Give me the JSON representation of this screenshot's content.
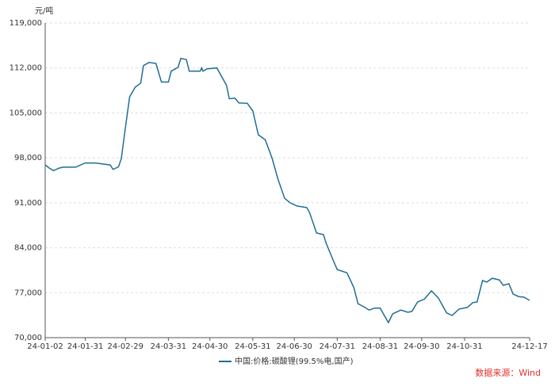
{
  "chart_data": {
    "type": "line",
    "y_unit": "元/吨",
    "source": "数据来源：Wind",
    "x": [
      "24-01-02",
      "24-01-05",
      "24-01-08",
      "24-01-12",
      "24-01-15",
      "24-01-24",
      "24-01-31",
      "24-02-07",
      "24-02-18",
      "24-02-20",
      "24-02-24",
      "24-02-26",
      "24-02-29",
      "24-03-03",
      "24-03-07",
      "24-03-11",
      "24-03-13",
      "24-03-17",
      "24-03-22",
      "24-03-26",
      "24-03-31",
      "24-04-02",
      "24-04-07",
      "24-04-09",
      "24-04-13",
      "24-04-15",
      "24-04-23",
      "24-04-24",
      "24-04-25",
      "24-04-28",
      "24-05-05",
      "24-05-12",
      "24-05-14",
      "24-05-18",
      "24-05-21",
      "24-05-27",
      "24-05-31",
      "24-06-04",
      "24-06-09",
      "24-06-14",
      "24-06-18",
      "24-06-23",
      "24-06-27",
      "24-07-02",
      "24-07-09",
      "24-07-11",
      "24-07-16",
      "24-07-21",
      "24-07-23",
      "24-07-28",
      "24-07-31",
      "24-08-07",
      "24-08-12",
      "24-08-15",
      "24-08-20",
      "24-08-23",
      "24-08-27",
      "24-08-31",
      "24-09-03",
      "24-09-06",
      "24-09-09",
      "24-09-15",
      "24-09-20",
      "24-09-23",
      "24-09-27",
      "24-10-02",
      "24-10-07",
      "24-10-12",
      "24-10-18",
      "24-10-22",
      "24-10-27",
      "24-11-02",
      "24-11-06",
      "24-11-09",
      "24-11-13",
      "24-11-16",
      "24-11-20",
      "24-11-25",
      "24-11-28",
      "24-12-02",
      "24-12-05",
      "24-12-09",
      "24-12-13",
      "24-12-17"
    ],
    "series": [
      {
        "name": "中国:价格:碳酸锂(99.5%电,国产)",
        "color": "#1f6e94",
        "values": [
          96900,
          96400,
          96000,
          96400,
          96550,
          96550,
          97200,
          97200,
          96900,
          96200,
          96600,
          97900,
          102800,
          107500,
          109000,
          109650,
          112350,
          112850,
          112700,
          109800,
          109800,
          111500,
          112100,
          113500,
          113300,
          111500,
          111500,
          112000,
          111500,
          111850,
          112000,
          109300,
          107200,
          107300,
          106550,
          106500,
          105300,
          101600,
          100800,
          97900,
          94800,
          91700,
          91000,
          90500,
          90250,
          89500,
          86300,
          86050,
          84700,
          82100,
          80600,
          80100,
          77800,
          75300,
          74700,
          74300,
          74600,
          74600,
          73450,
          72350,
          73700,
          74300,
          73950,
          74100,
          75550,
          76000,
          77300,
          76200,
          73850,
          73450,
          74450,
          74700,
          75450,
          75550,
          78900,
          78650,
          79250,
          79000,
          78150,
          78400,
          76800,
          76400,
          76300,
          75800
        ]
      }
    ],
    "xlim": [
      "24-01-02",
      "24-12-17"
    ],
    "xticks": [
      "24-01-02",
      "24-01-31",
      "24-02-29",
      "24-03-31",
      "24-04-30",
      "24-05-31",
      "24-06-30",
      "24-07-31",
      "24-08-31",
      "24-09-30",
      "24-10-31",
      "24-12-17"
    ],
    "ylim": [
      70000,
      119000
    ],
    "yticks": [
      {
        "value": 70000,
        "label": "70,000"
      },
      {
        "value": 77000,
        "label": "77,000"
      },
      {
        "value": 84000,
        "label": "84,000"
      },
      {
        "value": 91000,
        "label": "91,000"
      },
      {
        "value": 98000,
        "label": "98,000"
      },
      {
        "value": 105000,
        "label": "105,000"
      },
      {
        "value": 112000,
        "label": "112,000"
      },
      {
        "value": 119000,
        "label": "119,000"
      }
    ],
    "grid": true
  }
}
